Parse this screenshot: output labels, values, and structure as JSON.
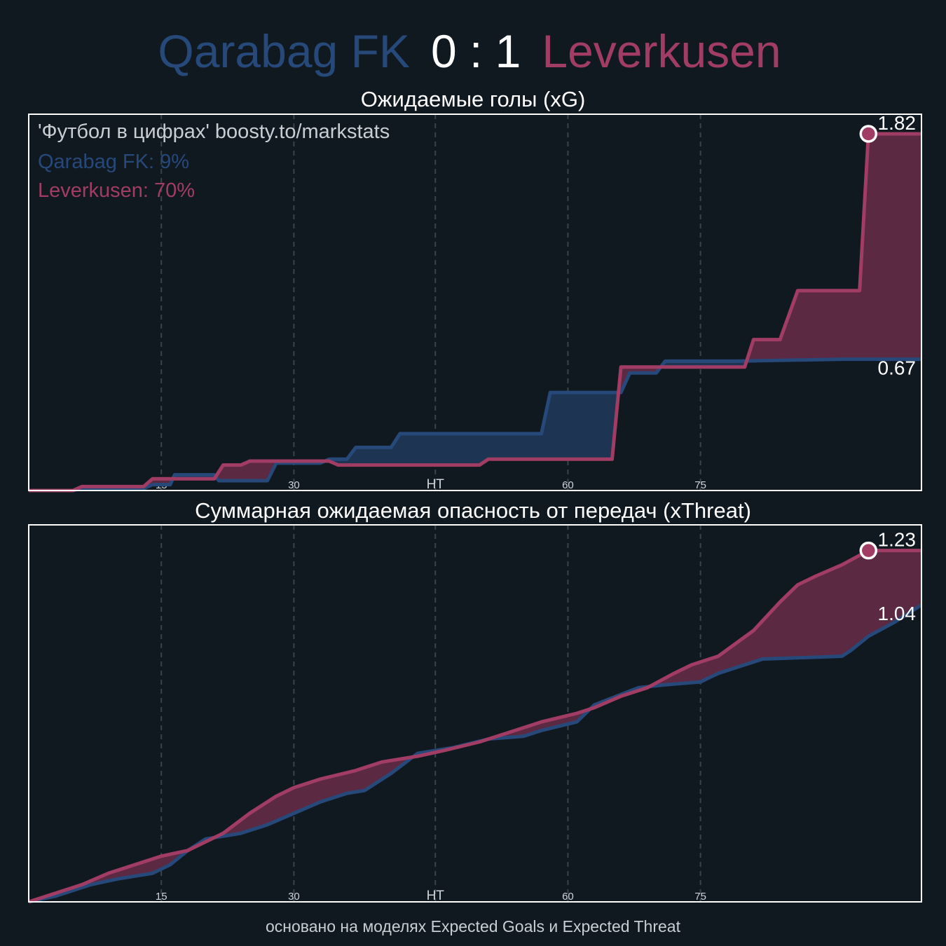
{
  "header": {
    "home_team": "Qarabag FK",
    "away_team": "Leverkusen",
    "score": "0 : 1"
  },
  "colors": {
    "background": "#101820",
    "home": "#27497a",
    "away": "#a13d64",
    "away_fill": "#5b2942",
    "home_fill": "#1d3452",
    "frame": "#ffffff",
    "grid": "#3a434c"
  },
  "legend": {
    "source": "'Футбол в цифрах' boosty.to/markstats",
    "home_prob": "Qarabag FK: 9%",
    "away_prob": "Leverkusen: 70%"
  },
  "footer": "основано на моделях Expected Goals и Expected Threat",
  "chart_data": [
    {
      "type": "line",
      "title": "Ожидаемые голы (xG)",
      "xlim": [
        0,
        101
      ],
      "ylim": [
        0,
        1.92
      ],
      "x_ticks": [
        {
          "x": 15,
          "label": "15"
        },
        {
          "x": 30,
          "label": "30"
        },
        {
          "x": 46,
          "label": "HT"
        },
        {
          "x": 61,
          "label": "60"
        },
        {
          "x": 76,
          "label": "75"
        }
      ],
      "end_labels": {
        "home": "0.67",
        "away": "1.82"
      },
      "goal_marker": {
        "x": 95,
        "y": 1.82,
        "team": "away"
      },
      "series": [
        {
          "name": "Qarabag FK",
          "key": "home",
          "points": [
            [
              0,
              0
            ],
            [
              5,
              0
            ],
            [
              6,
              0.01
            ],
            [
              13,
              0.01
            ],
            [
              14,
              0.03
            ],
            [
              16,
              0.03
            ],
            [
              16.5,
              0.08
            ],
            [
              21,
              0.08
            ],
            [
              21.5,
              0.05
            ],
            [
              27,
              0.05
            ],
            [
              28,
              0.14
            ],
            [
              33,
              0.14
            ],
            [
              34,
              0.16
            ],
            [
              36,
              0.16
            ],
            [
              37,
              0.22
            ],
            [
              41,
              0.22
            ],
            [
              42,
              0.29
            ],
            [
              58,
              0.29
            ],
            [
              59,
              0.5
            ],
            [
              67,
              0.5
            ],
            [
              68,
              0.6
            ],
            [
              71,
              0.6
            ],
            [
              72,
              0.66
            ],
            [
              80,
              0.66
            ],
            [
              92,
              0.67
            ],
            [
              101,
              0.67
            ]
          ]
        },
        {
          "name": "Leverkusen",
          "key": "away",
          "points": [
            [
              0,
              0
            ],
            [
              5,
              0
            ],
            [
              6,
              0.02
            ],
            [
              13,
              0.02
            ],
            [
              14,
              0.06
            ],
            [
              21,
              0.06
            ],
            [
              22,
              0.13
            ],
            [
              24,
              0.13
            ],
            [
              25,
              0.15
            ],
            [
              34,
              0.15
            ],
            [
              35,
              0.13
            ],
            [
              51,
              0.13
            ],
            [
              52,
              0.16
            ],
            [
              66,
              0.16
            ],
            [
              67,
              0.63
            ],
            [
              81,
              0.63
            ],
            [
              82,
              0.77
            ],
            [
              85,
              0.77
            ],
            [
              87,
              1.02
            ],
            [
              94,
              1.02
            ],
            [
              95,
              1.82
            ],
            [
              101,
              1.82
            ]
          ]
        }
      ]
    },
    {
      "type": "line",
      "title": "Суммарная ожидаемая опасность от передач (xThreat)",
      "xlim": [
        0,
        101
      ],
      "ylim": [
        0,
        1.32
      ],
      "x_ticks": [
        {
          "x": 15,
          "label": "15"
        },
        {
          "x": 30,
          "label": "30"
        },
        {
          "x": 46,
          "label": "HT"
        },
        {
          "x": 61,
          "label": "60"
        },
        {
          "x": 76,
          "label": "75"
        }
      ],
      "end_labels": {
        "home": "1.04",
        "away": "1.23"
      },
      "goal_marker": {
        "x": 95,
        "y": 1.23,
        "team": "away"
      },
      "series": [
        {
          "name": "Qarabag FK",
          "key": "home",
          "points": [
            [
              0,
              0
            ],
            [
              3,
              0.02
            ],
            [
              5,
              0.04
            ],
            [
              7,
              0.06
            ],
            [
              10,
              0.08
            ],
            [
              12,
              0.09
            ],
            [
              14,
              0.1
            ],
            [
              16,
              0.13
            ],
            [
              18,
              0.18
            ],
            [
              20,
              0.22
            ],
            [
              22,
              0.23
            ],
            [
              24,
              0.24
            ],
            [
              27,
              0.27
            ],
            [
              30,
              0.31
            ],
            [
              33,
              0.35
            ],
            [
              36,
              0.38
            ],
            [
              38,
              0.39
            ],
            [
              41,
              0.45
            ],
            [
              44,
              0.52
            ],
            [
              46,
              0.53
            ],
            [
              48,
              0.54
            ],
            [
              52,
              0.57
            ],
            [
              56,
              0.58
            ],
            [
              58,
              0.6
            ],
            [
              62,
              0.63
            ],
            [
              64,
              0.69
            ],
            [
              69,
              0.75
            ],
            [
              72,
              0.76
            ],
            [
              76,
              0.77
            ],
            [
              78,
              0.8
            ],
            [
              83,
              0.85
            ],
            [
              92,
              0.86
            ],
            [
              93,
              0.88
            ],
            [
              95,
              0.93
            ],
            [
              98,
              0.98
            ],
            [
              101,
              1.04
            ]
          ]
        },
        {
          "name": "Leverkusen",
          "key": "away",
          "points": [
            [
              0,
              0
            ],
            [
              3,
              0.03
            ],
            [
              6,
              0.06
            ],
            [
              9,
              0.1
            ],
            [
              12,
              0.13
            ],
            [
              15,
              0.16
            ],
            [
              18,
              0.18
            ],
            [
              22,
              0.24
            ],
            [
              25,
              0.31
            ],
            [
              28,
              0.37
            ],
            [
              30,
              0.4
            ],
            [
              33,
              0.43
            ],
            [
              37,
              0.46
            ],
            [
              40,
              0.49
            ],
            [
              44,
              0.51
            ],
            [
              47,
              0.53
            ],
            [
              51,
              0.56
            ],
            [
              55,
              0.6
            ],
            [
              58,
              0.63
            ],
            [
              62,
              0.66
            ],
            [
              64,
              0.68
            ],
            [
              67,
              0.72
            ],
            [
              70,
              0.75
            ],
            [
              73,
              0.8
            ],
            [
              75,
              0.83
            ],
            [
              78,
              0.86
            ],
            [
              82,
              0.95
            ],
            [
              85,
              1.05
            ],
            [
              87,
              1.11
            ],
            [
              89,
              1.14
            ],
            [
              92,
              1.18
            ],
            [
              95,
              1.23
            ],
            [
              101,
              1.23
            ]
          ]
        }
      ]
    }
  ]
}
